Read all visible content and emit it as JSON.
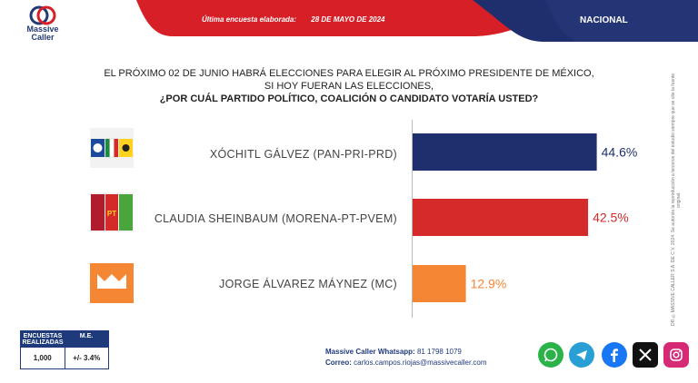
{
  "brand": {
    "name_line1": "Massive",
    "name_line2": "Caller"
  },
  "header": {
    "date_label": "Última encuesta elaborada:",
    "date_value": "28 DE MAYO DE 2024",
    "scope": "NACIONAL"
  },
  "question": {
    "line1": "EL PRÓXIMO 02 DE JUNIO HABRÁ ELECCIONES PARA ELEGIR AL PRÓXIMO PRESIDENTE DE MÉXICO,",
    "line2": "SI HOY FUERAN LAS ELECCIONES,",
    "line3": "¿POR CUÁL PARTIDO POLÍTICO, COALICIÓN O CANDIDATO VOTARÍA USTED?"
  },
  "chart_data": {
    "type": "bar",
    "orientation": "horizontal",
    "categories": [
      "XÓCHITL GÁLVEZ (PAN-PRI-PRD)",
      "CLAUDIA SHEINBAUM (MORENA-PT-PVEM)",
      "JORGE ÁLVAREZ MÁYNEZ (MC)"
    ],
    "values": [
      44.6,
      42.5,
      12.9
    ],
    "value_labels": [
      "44.6%",
      "42.5%",
      "12.9%"
    ],
    "colors": [
      "#1f2f6e",
      "#d42a2a",
      "#f58634"
    ],
    "label_colors": [
      "#1f2f6e",
      "#d42a2a",
      "#f58634"
    ],
    "xlim": [
      0,
      70
    ],
    "grid": false,
    "legend": "none"
  },
  "side_note": "DR ©MASSIVE CALLER S.A. DE C.V. 2024. Se autoriza la reproducción a terceros del estudio siempre que se cite la fuente original.",
  "stats": {
    "col1_header": "ENCUESTAS REALIZADAS",
    "col2_header": "M.E.",
    "col1_value": "1,000",
    "col2_value": "+/- 3.4%"
  },
  "contact": {
    "whatsapp_label": "Massive Caller Whatsapp:",
    "whatsapp_value": "81 1798 1079",
    "email_label": "Correo:",
    "email_value": "carlos.campos.riojas@massivecaller.com"
  },
  "social_icons": [
    "whatsapp-icon",
    "telegram-icon",
    "facebook-icon",
    "x-icon",
    "instagram-icon"
  ],
  "colors": {
    "navy": "#1f2f6e",
    "red": "#d42a2a",
    "orange": "#f58634"
  }
}
